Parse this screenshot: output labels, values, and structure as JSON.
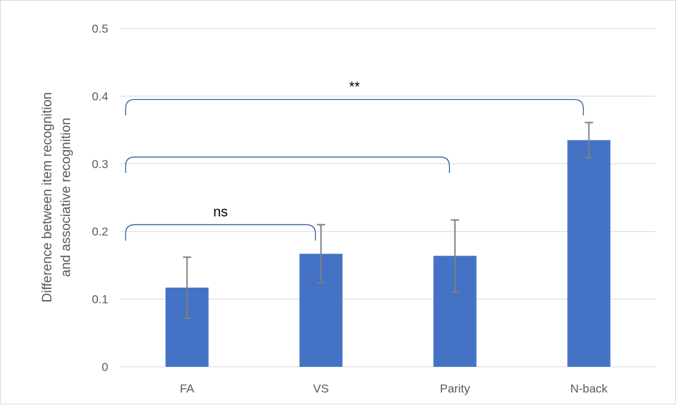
{
  "chart_data": {
    "type": "bar",
    "categories": [
      "FA",
      "VS",
      "Parity",
      "N-back"
    ],
    "values": [
      0.117,
      0.167,
      0.164,
      0.335
    ],
    "error_low": [
      0.072,
      0.124,
      0.11,
      0.309
    ],
    "error_high": [
      0.162,
      0.21,
      0.217,
      0.361
    ],
    "ylabel_lines": [
      "Difference between item recognition",
      "and associative recognition"
    ],
    "xlabel": "",
    "ylim": [
      0,
      0.5
    ],
    "yticks": [
      0,
      0.1,
      0.2,
      0.3,
      0.4,
      0.5
    ],
    "ytick_labels": [
      "0",
      "0.1",
      "0.2",
      "0.3",
      "0.4",
      "0.5"
    ],
    "grid": true,
    "bar_color": "#4472C4",
    "error_color": "#7f7f7f",
    "bracket_color": "#2e5c9e",
    "annotations": [
      {
        "label": "ns",
        "from": "FA",
        "to": "VS",
        "y": 0.21
      },
      {
        "label": "",
        "from": "FA",
        "to": "Parity",
        "y": 0.31
      },
      {
        "label": "**",
        "from": "FA",
        "to": "N-back",
        "y": 0.395
      }
    ]
  }
}
